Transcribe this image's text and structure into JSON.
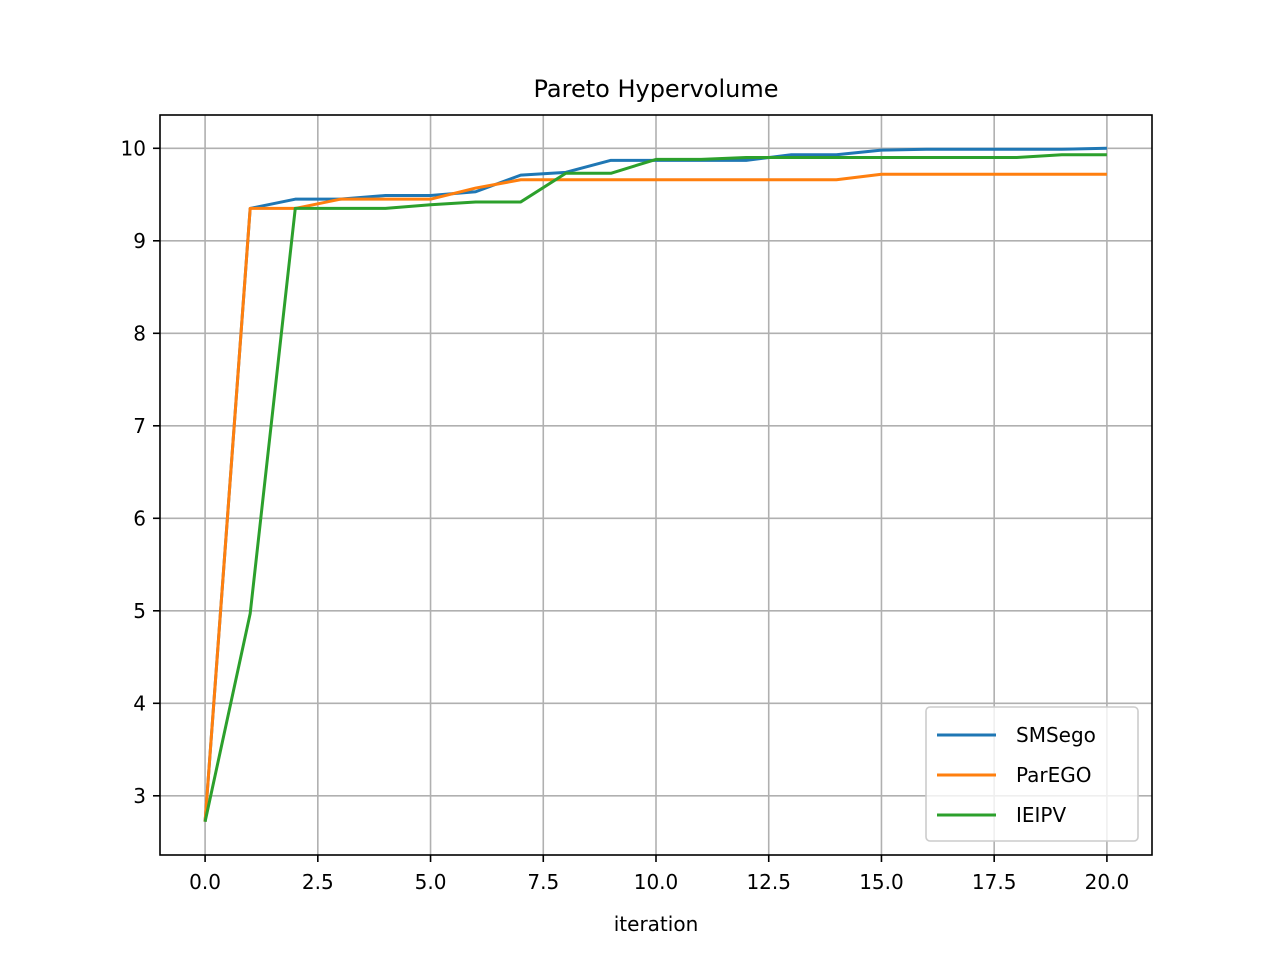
{
  "chart_data": {
    "type": "line",
    "title": "Pareto Hypervolume",
    "xlabel": "iteration",
    "ylabel": "",
    "xlim": [
      -1.0,
      21.0
    ],
    "ylim": [
      2.36,
      10.36
    ],
    "xticks": [
      0.0,
      2.5,
      5.0,
      7.5,
      10.0,
      12.5,
      15.0,
      17.5,
      20.0
    ],
    "xtick_labels": [
      "0.0",
      "2.5",
      "5.0",
      "7.5",
      "10.0",
      "12.5",
      "15.0",
      "17.5",
      "20.0"
    ],
    "yticks": [
      3,
      4,
      5,
      6,
      7,
      8,
      9,
      10
    ],
    "ytick_labels": [
      "3",
      "4",
      "5",
      "6",
      "7",
      "8",
      "9",
      "10"
    ],
    "grid": true,
    "legend_position": "lower-right",
    "x": [
      0,
      1,
      2,
      3,
      4,
      5,
      6,
      7,
      8,
      9,
      10,
      11,
      12,
      13,
      14,
      15,
      16,
      17,
      18,
      19,
      20
    ],
    "series": [
      {
        "name": "SMSego",
        "color": "#1f77b4",
        "values": [
          2.72,
          9.35,
          9.45,
          9.45,
          9.49,
          9.49,
          9.53,
          9.71,
          9.74,
          9.87,
          9.87,
          9.87,
          9.87,
          9.93,
          9.93,
          9.98,
          9.99,
          9.99,
          9.99,
          9.99,
          10.0
        ]
      },
      {
        "name": "ParEGO",
        "color": "#ff7f0e",
        "values": [
          2.72,
          9.35,
          9.35,
          9.45,
          9.45,
          9.45,
          9.57,
          9.66,
          9.66,
          9.66,
          9.66,
          9.66,
          9.66,
          9.66,
          9.66,
          9.72,
          9.72,
          9.72,
          9.72,
          9.72,
          9.72
        ]
      },
      {
        "name": "IEIPV",
        "color": "#2ca02c",
        "values": [
          2.72,
          4.97,
          9.35,
          9.35,
          9.35,
          9.39,
          9.42,
          9.42,
          9.73,
          9.73,
          9.88,
          9.88,
          9.9,
          9.9,
          9.9,
          9.9,
          9.9,
          9.9,
          9.9,
          9.93,
          9.93
        ]
      }
    ]
  }
}
